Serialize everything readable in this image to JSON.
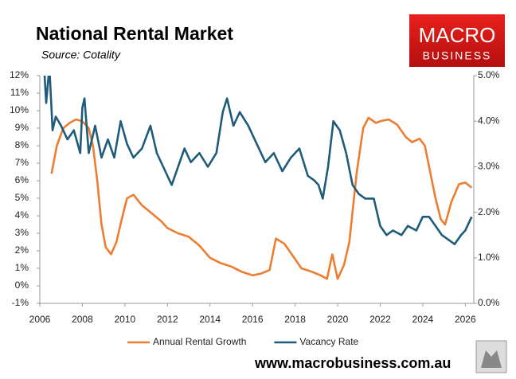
{
  "chart_data": {
    "type": "line",
    "title": "National Rental Market",
    "subtitle": "Source: Cotality",
    "xlim": [
      2006,
      2026.4
    ],
    "xticks": [
      2006,
      2008,
      2010,
      2012,
      2014,
      2016,
      2018,
      2020,
      2022,
      2024,
      2026
    ],
    "ylim": [
      -1,
      12
    ],
    "yticks": [
      {
        "value": -1,
        "label": "-1%"
      },
      {
        "value": 0,
        "label": "0%"
      },
      {
        "value": 1,
        "label": "1%"
      },
      {
        "value": 2,
        "label": "2%"
      },
      {
        "value": 3,
        "label": "3%"
      },
      {
        "value": 4,
        "label": "4%"
      },
      {
        "value": 5,
        "label": "5%"
      },
      {
        "value": 6,
        "label": "6%"
      },
      {
        "value": 7,
        "label": "7%"
      },
      {
        "value": 8,
        "label": "8%"
      },
      {
        "value": 9,
        "label": "9%"
      },
      {
        "value": 10,
        "label": "10%"
      },
      {
        "value": 11,
        "label": "11%"
      },
      {
        "value": 12,
        "label": "12%"
      }
    ],
    "y2lim": [
      0,
      5
    ],
    "y2ticks": [
      {
        "value": 0,
        "label": "0.0%"
      },
      {
        "value": 1,
        "label": "1.0%"
      },
      {
        "value": 2,
        "label": "2.0%"
      },
      {
        "value": 3,
        "label": "3.0%"
      },
      {
        "value": 4,
        "label": "4.0%"
      },
      {
        "value": 5,
        "label": "5.0%"
      }
    ],
    "legend": "bottom",
    "series": [
      {
        "name": "Annual Rental Growth",
        "color": "#ed7d31",
        "axis": "y",
        "x": [
          2006.55,
          2006.8,
          2007.1,
          2007.4,
          2007.7,
          2008.0,
          2008.3,
          2008.5,
          2008.7,
          2008.9,
          2009.1,
          2009.35,
          2009.6,
          2009.85,
          2010.1,
          2010.4,
          2010.8,
          2011.2,
          2011.7,
          2012.0,
          2012.5,
          2013.0,
          2013.5,
          2014.0,
          2014.5,
          2015.0,
          2015.5,
          2016.0,
          2016.4,
          2016.8,
          2017.1,
          2017.5,
          2017.9,
          2018.3,
          2018.8,
          2019.2,
          2019.5,
          2019.75,
          2020.0,
          2020.3,
          2020.55,
          2020.9,
          2021.2,
          2021.45,
          2021.8,
          2022.0,
          2022.4,
          2022.8,
          2023.2,
          2023.5,
          2023.85,
          2024.1,
          2024.35,
          2024.6,
          2024.85,
          2025.05,
          2025.35,
          2025.7,
          2026.0,
          2026.3
        ],
        "values": [
          6.4,
          8.0,
          9.0,
          9.3,
          9.5,
          9.4,
          9.0,
          8.0,
          6.0,
          3.5,
          2.2,
          1.8,
          2.5,
          3.8,
          5.0,
          5.2,
          4.6,
          4.2,
          3.7,
          3.3,
          3.0,
          2.8,
          2.3,
          1.6,
          1.3,
          1.1,
          0.8,
          0.6,
          0.7,
          0.9,
          2.7,
          2.4,
          1.7,
          1.0,
          0.8,
          0.6,
          0.4,
          1.8,
          0.4,
          1.2,
          2.5,
          6.5,
          9.0,
          9.6,
          9.3,
          9.4,
          9.5,
          9.2,
          8.5,
          8.2,
          8.4,
          8.0,
          6.5,
          5.0,
          3.8,
          3.5,
          4.8,
          5.8,
          5.9,
          5.6
        ]
      },
      {
        "name": "Vacancy Rate",
        "color": "#1f5c7a",
        "axis": "y2",
        "x": [
          2006.2,
          2006.3,
          2006.45,
          2006.6,
          2006.75,
          2007.0,
          2007.3,
          2007.6,
          2007.9,
          2008.0,
          2008.1,
          2008.3,
          2008.6,
          2008.9,
          2009.2,
          2009.5,
          2009.8,
          2010.1,
          2010.4,
          2010.8,
          2011.2,
          2011.5,
          2011.9,
          2012.2,
          2012.5,
          2012.8,
          2013.1,
          2013.5,
          2013.9,
          2014.3,
          2014.6,
          2014.8,
          2015.1,
          2015.4,
          2015.8,
          2016.2,
          2016.6,
          2017.0,
          2017.4,
          2017.8,
          2018.2,
          2018.6,
          2018.9,
          2019.1,
          2019.3,
          2019.55,
          2019.8,
          2020.1,
          2020.4,
          2020.7,
          2021.0,
          2021.3,
          2021.7,
          2022.0,
          2022.3,
          2022.6,
          2023.0,
          2023.3,
          2023.7,
          2024.0,
          2024.3,
          2024.6,
          2024.9,
          2025.2,
          2025.5,
          2025.8,
          2026.0,
          2026.3
        ],
        "values": [
          5.2,
          4.4,
          5.2,
          3.8,
          4.1,
          3.9,
          3.6,
          3.8,
          3.3,
          4.3,
          4.5,
          3.3,
          3.9,
          3.2,
          3.6,
          3.2,
          4.0,
          3.5,
          3.2,
          3.4,
          3.9,
          3.3,
          2.9,
          2.6,
          3.0,
          3.4,
          3.1,
          3.3,
          3.0,
          3.3,
          4.2,
          4.5,
          3.9,
          4.2,
          3.9,
          3.5,
          3.1,
          3.3,
          2.9,
          3.2,
          3.4,
          2.8,
          2.7,
          2.6,
          2.3,
          3.0,
          4.0,
          3.8,
          3.3,
          2.6,
          2.4,
          2.3,
          2.3,
          1.7,
          1.5,
          1.6,
          1.5,
          1.7,
          1.6,
          1.9,
          1.9,
          1.7,
          1.5,
          1.4,
          1.3,
          1.5,
          1.6,
          1.9
        ]
      }
    ]
  },
  "logo": {
    "line1": "MACRO",
    "line2": "BUSINESS"
  },
  "website": "www.macrobusiness.com.au"
}
